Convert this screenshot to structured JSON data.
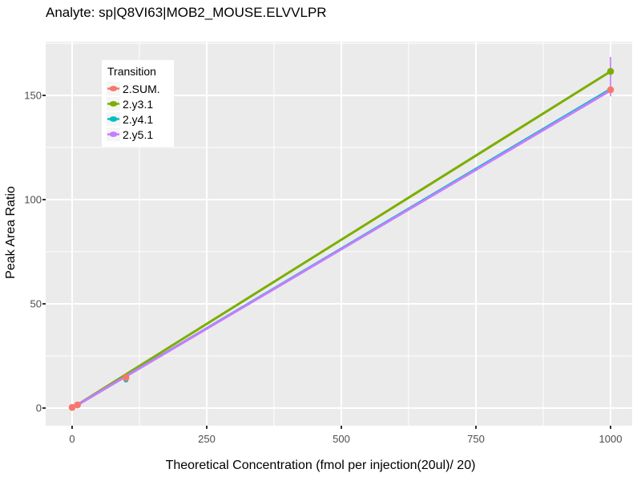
{
  "title": "Analyte: sp|Q8VI63|MOB2_MOUSE.ELVVLPR",
  "chart_data": {
    "type": "line",
    "title": "Analyte: sp|Q8VI63|MOB2_MOUSE.ELVVLPR",
    "xlabel": "Theoretical Concentration (fmol per injection(20ul)/ 20)",
    "ylabel": "Peak Area Ratio",
    "xlim": [
      -50,
      1050
    ],
    "ylim": [
      -8.5,
      176
    ],
    "grid": true,
    "panel_background": "#EBEBEB",
    "gridline_color": "#FFFFFF",
    "tick_text_color": "#4D4D4D",
    "x_ticks": [
      {
        "value": 0,
        "label": "0"
      },
      {
        "value": 250,
        "label": "250"
      },
      {
        "value": 500,
        "label": "500"
      },
      {
        "value": 750,
        "label": "750"
      },
      {
        "value": 1000,
        "label": "1000"
      }
    ],
    "y_ticks": [
      {
        "value": 0,
        "label": "0"
      },
      {
        "value": 50,
        "label": "50"
      },
      {
        "value": 100,
        "label": "100"
      },
      {
        "value": 150,
        "label": "150"
      }
    ],
    "x_minor_ticks": [
      125,
      375,
      625,
      875
    ],
    "y_minor_ticks": [
      25,
      75,
      125,
      175
    ],
    "legend": {
      "title": "Transition",
      "position": "inside-top-left"
    },
    "series": [
      {
        "name": "2.SUM.",
        "color": "#F8766D",
        "line": {
          "x": [
            0,
            1000
          ],
          "y": [
            0,
            152.7
          ]
        },
        "points": [
          {
            "x": 0,
            "y": 0.3
          },
          {
            "x": 10,
            "y": 1.5
          },
          {
            "x": 100,
            "y": 14.6
          },
          {
            "x": 1000,
            "y": 152.7
          }
        ],
        "point_size": 4.3,
        "error_bars": []
      },
      {
        "name": "2.y3.1",
        "color": "#7CAE00",
        "line": {
          "x": [
            0,
            1000
          ],
          "y": [
            0,
            161.5
          ]
        },
        "points": [
          {
            "x": 1000,
            "y": 161.5
          }
        ],
        "point_size": 4.3,
        "error_bars": []
      },
      {
        "name": "2.y4.1",
        "color": "#00BFC4",
        "line": {
          "x": [
            0,
            1000
          ],
          "y": [
            0,
            153.0
          ]
        },
        "points": [
          {
            "x": 100,
            "y": 13.5
          }
        ],
        "point_size": 3.2,
        "error_bars": []
      },
      {
        "name": "2.y5.1",
        "color": "#C77CFF",
        "line": {
          "x": [
            0,
            1000
          ],
          "y": [
            0,
            152.4
          ]
        },
        "points": [],
        "point_size": 3.2,
        "error_bars": [
          {
            "x": 1000,
            "ymin": 149.5,
            "ymax": 168.5
          }
        ]
      }
    ]
  }
}
